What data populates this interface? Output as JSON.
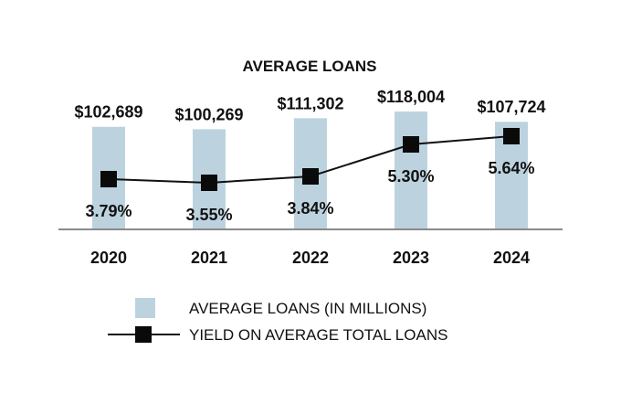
{
  "colors": {
    "bar": "#bcd3df",
    "line": "#111111",
    "marker": "#0a0a0a",
    "axis": "#8a8a8a",
    "text": "#111111"
  },
  "chart_data": {
    "type": "bar",
    "title": "AVERAGE LOANS",
    "categories": [
      "2020",
      "2021",
      "2022",
      "2023",
      "2024"
    ],
    "series": [
      {
        "name": "AVERAGE LOANS (IN MILLIONS)",
        "type": "bar",
        "values": [
          102689,
          100269,
          111302,
          118004,
          107724
        ],
        "labels": [
          "$102,689",
          "$100,269",
          "$111,302",
          "$118,004",
          "$107,724"
        ]
      },
      {
        "name": "YIELD ON AVERAGE TOTAL LOANS",
        "type": "line",
        "values": [
          3.79,
          3.55,
          3.84,
          5.3,
          5.64
        ],
        "labels": [
          "3.79%",
          "3.55%",
          "3.84%",
          "5.30%",
          "5.64%"
        ],
        "marker": "square"
      }
    ],
    "ylim_bars": [
      0,
      118004
    ],
    "ylim_line": [
      0,
      6
    ],
    "grid": false,
    "legend_position": "bottom"
  }
}
